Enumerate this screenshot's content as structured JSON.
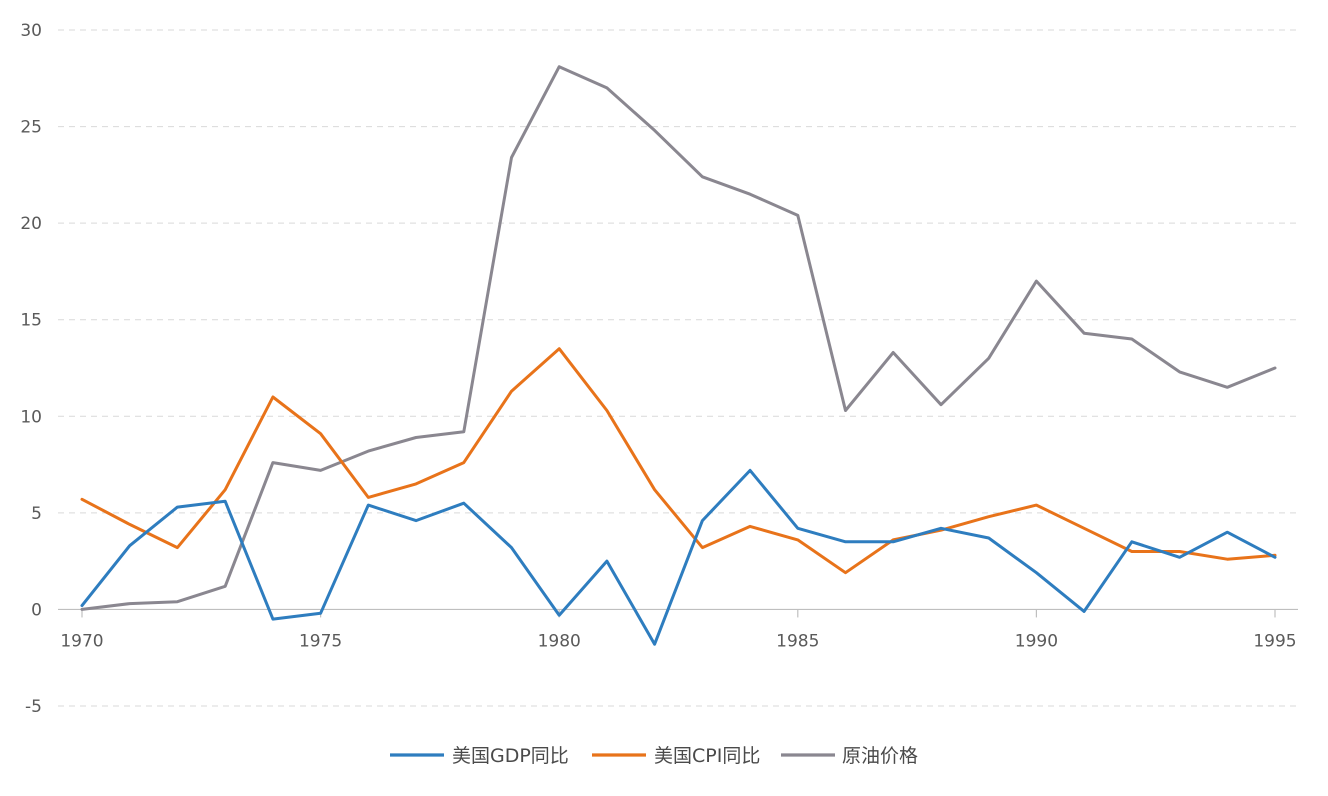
{
  "chart_data": {
    "type": "line",
    "title": "",
    "xlabel": "",
    "ylabel": "",
    "xlim": [
      1970,
      1995
    ],
    "ylim": [
      -5,
      30
    ],
    "x_ticks": [
      1970,
      1975,
      1980,
      1985,
      1990,
      1995
    ],
    "y_ticks": [
      -5,
      0,
      5,
      10,
      15,
      20,
      25,
      30
    ],
    "grid": "horizontal-dashed",
    "legend_position": "bottom",
    "x": [
      1970,
      1971,
      1972,
      1973,
      1974,
      1975,
      1976,
      1977,
      1978,
      1979,
      1980,
      1981,
      1982,
      1983,
      1984,
      1985,
      1986,
      1987,
      1988,
      1989,
      1990,
      1991,
      1992,
      1993,
      1994,
      1995
    ],
    "series": [
      {
        "name": "美国GDP同比",
        "color": "#2e7dbf",
        "values": [
          0.2,
          3.3,
          5.3,
          5.6,
          -0.5,
          -0.2,
          5.4,
          4.6,
          5.5,
          3.2,
          -0.3,
          2.5,
          -1.8,
          4.6,
          7.2,
          4.2,
          3.5,
          3.5,
          4.2,
          3.7,
          1.9,
          -0.1,
          3.5,
          2.7,
          4.0,
          2.7
        ]
      },
      {
        "name": "美国CPI同比",
        "color": "#e8731a",
        "values": [
          5.7,
          4.4,
          3.2,
          6.2,
          11.0,
          9.1,
          5.8,
          6.5,
          7.6,
          11.3,
          13.5,
          10.3,
          6.2,
          3.2,
          4.3,
          3.6,
          1.9,
          3.6,
          4.1,
          4.8,
          5.4,
          4.2,
          3.0,
          3.0,
          2.6,
          2.8
        ]
      },
      {
        "name": "原油价格",
        "color": "#8a8790",
        "values": [
          0.0,
          0.3,
          0.4,
          1.2,
          7.6,
          7.2,
          8.2,
          8.9,
          9.2,
          23.4,
          28.1,
          27.0,
          24.8,
          22.4,
          21.5,
          20.4,
          10.3,
          13.3,
          10.6,
          13.0,
          17.0,
          14.3,
          14.0,
          12.3,
          11.5,
          12.5
        ]
      }
    ]
  }
}
